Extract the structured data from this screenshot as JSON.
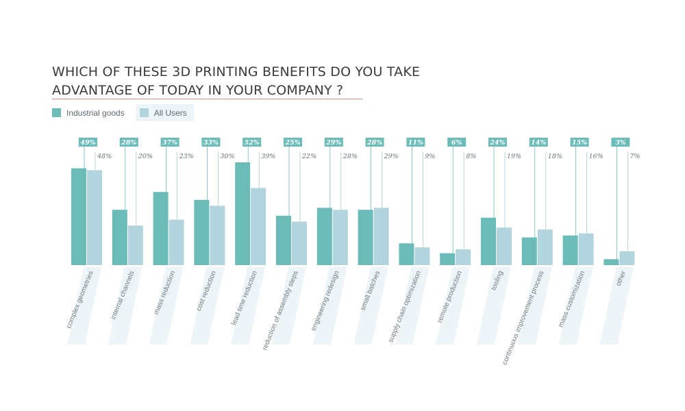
{
  "title_line1": "WHICH OF THESE 3D PRINTING BENEFITS DO YOU TAKE",
  "title_line2": "ADVANTAGE OF TODAY IN YOUR COMPANY ?",
  "colors": {
    "industrial": "#6bbcb9",
    "all": "#b2d4de",
    "label_box": "#6bbcb9",
    "category_stripe": "#eef5f8",
    "title_underline": "#e8897f"
  },
  "legend": [
    {
      "name": "Industrial goods",
      "color": "#6bbcb9"
    },
    {
      "name": "All Users",
      "color": "#b2d4de"
    }
  ],
  "chart_data": {
    "type": "bar",
    "title": "WHICH OF THESE 3D PRINTING BENEFITS DO YOU TAKE ADVANTAGE OF TODAY IN YOUR COMPANY ?",
    "categories": [
      "complex geometries",
      "internal channels",
      "mass reduction",
      "cost reduction",
      "lead time reduction",
      "reduction of assembly steps",
      "engineering redesign",
      "small batches",
      "supply chain optimization",
      "remote production",
      "tooling",
      "continuous improvement process",
      "mass customization",
      "other"
    ],
    "series": [
      {
        "name": "Industrial goods",
        "values": [
          49,
          28,
          37,
          33,
          52,
          25,
          29,
          28,
          11,
          6,
          24,
          14,
          15,
          3
        ]
      },
      {
        "name": "All Users",
        "values": [
          48,
          20,
          23,
          30,
          39,
          22,
          28,
          29,
          9,
          8,
          19,
          18,
          16,
          7
        ]
      }
    ],
    "value_suffix": "%",
    "ylim": [
      0,
      52
    ],
    "legend_position": "top-left",
    "grid": false
  }
}
